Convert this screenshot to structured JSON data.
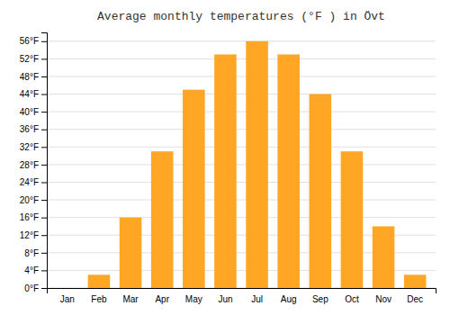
{
  "chart_data": {
    "type": "bar",
    "title": "Average monthly temperatures (°F ) in Övt",
    "categories": [
      "Jan",
      "Feb",
      "Mar",
      "Apr",
      "May",
      "Jun",
      "Jul",
      "Aug",
      "Sep",
      "Oct",
      "Nov",
      "Dec"
    ],
    "values": [
      0,
      3,
      16,
      31,
      45,
      53,
      56,
      53,
      44,
      31,
      14,
      3
    ],
    "color": "#FFA724",
    "ylim": [
      0,
      58
    ],
    "yticks": [
      {
        "value": 0,
        "label": "0°F"
      },
      {
        "value": 4,
        "label": "4°F"
      },
      {
        "value": 8,
        "label": "8°F"
      },
      {
        "value": 12,
        "label": "12°F"
      },
      {
        "value": 16,
        "label": "16°F"
      },
      {
        "value": 20,
        "label": "20°F"
      },
      {
        "value": 24,
        "label": "24°F"
      },
      {
        "value": 28,
        "label": "28°F"
      },
      {
        "value": 32,
        "label": "32°F"
      },
      {
        "value": 36,
        "label": "36°F"
      },
      {
        "value": 40,
        "label": "40°F"
      },
      {
        "value": 44,
        "label": "44°F"
      },
      {
        "value": 48,
        "label": "48°F"
      },
      {
        "value": 52,
        "label": "52°F"
      },
      {
        "value": 56,
        "label": "56°F"
      }
    ],
    "grid": true
  }
}
